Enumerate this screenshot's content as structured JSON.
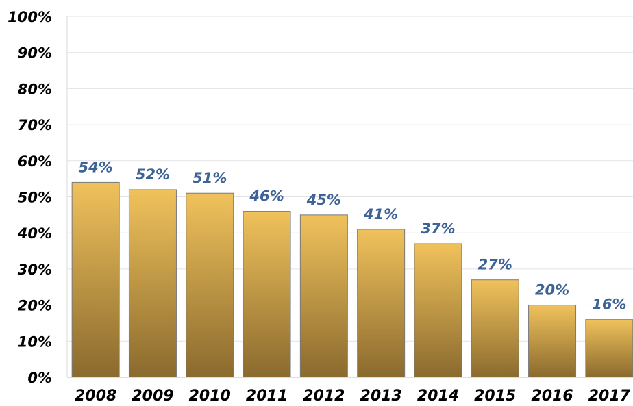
{
  "chart_data": {
    "type": "bar",
    "categories": [
      "2008",
      "2009",
      "2010",
      "2011",
      "2012",
      "2013",
      "2014",
      "2015",
      "2016",
      "2017"
    ],
    "values": [
      54,
      52,
      51,
      46,
      45,
      41,
      37,
      27,
      20,
      16
    ],
    "data_labels": [
      "54%",
      "52%",
      "51%",
      "46%",
      "45%",
      "41%",
      "37%",
      "27%",
      "20%",
      "16%"
    ],
    "ylim": [
      0,
      100
    ],
    "yticks": [
      0,
      10,
      20,
      30,
      40,
      50,
      60,
      70,
      80,
      90,
      100
    ],
    "ytick_labels": [
      "0%",
      "10%",
      "20%",
      "30%",
      "40%",
      "50%",
      "60%",
      "70%",
      "80%",
      "90%",
      "100%"
    ],
    "grid": true,
    "legend": "none",
    "colors": {
      "bar_top": "#f0c25c",
      "bar_bottom": "#8a6a2e",
      "data_label": "#3d6296",
      "gridline": "#e3e3e3"
    }
  }
}
